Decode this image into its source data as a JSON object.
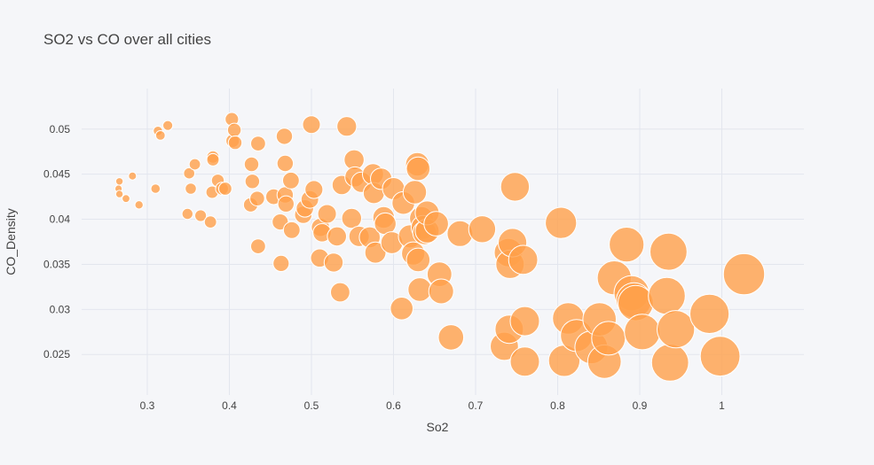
{
  "chart_data": {
    "type": "scatter",
    "title": "SO2 vs CO over all cities",
    "xlabel": "So2",
    "ylabel": "CO_Density",
    "xlim": [
      0.22,
      1.1
    ],
    "ylim": [
      0.0205,
      0.0545
    ],
    "xticks": [
      0.3,
      0.4,
      0.5,
      0.6,
      0.7,
      0.8,
      0.9,
      1
    ],
    "xtick_labels": [
      "0.3",
      "0.4",
      "0.5",
      "0.6",
      "0.7",
      "0.8",
      "0.9",
      "1"
    ],
    "yticks": [
      0.025,
      0.03,
      0.035,
      0.04,
      0.045,
      0.05
    ],
    "ytick_labels": [
      "0.025",
      "0.03",
      "0.035",
      "0.04",
      "0.045",
      "0.05"
    ],
    "grid": true,
    "legend": "none",
    "marker_color": "#ffa04a",
    "marker_opacity": 0.8,
    "marker_size_encodes": "So2",
    "series": [
      {
        "points": [
          [
            0.266,
            0.0442
          ],
          [
            0.265,
            0.0434
          ],
          [
            0.266,
            0.0428
          ],
          [
            0.274,
            0.0423
          ],
          [
            0.282,
            0.0448
          ],
          [
            0.29,
            0.0416
          ],
          [
            0.31,
            0.0434
          ],
          [
            0.313,
            0.0498
          ],
          [
            0.316,
            0.0493
          ],
          [
            0.325,
            0.0504
          ],
          [
            0.349,
            0.0406
          ],
          [
            0.351,
            0.0451
          ],
          [
            0.353,
            0.0434
          ],
          [
            0.358,
            0.0461
          ],
          [
            0.365,
            0.0404
          ],
          [
            0.377,
            0.0397
          ],
          [
            0.38,
            0.0469
          ],
          [
            0.379,
            0.043
          ],
          [
            0.38,
            0.0466
          ],
          [
            0.386,
            0.0443
          ],
          [
            0.391,
            0.0434
          ],
          [
            0.395,
            0.0434
          ],
          [
            0.403,
            0.0511
          ],
          [
            0.404,
            0.0487
          ],
          [
            0.406,
            0.0499
          ],
          [
            0.407,
            0.0485
          ],
          [
            0.426,
            0.0416
          ],
          [
            0.427,
            0.0461
          ],
          [
            0.428,
            0.0442
          ],
          [
            0.434,
            0.0423
          ],
          [
            0.435,
            0.0484
          ],
          [
            0.435,
            0.037
          ],
          [
            0.454,
            0.0425
          ],
          [
            0.462,
            0.0397
          ],
          [
            0.463,
            0.0351
          ],
          [
            0.467,
            0.0492
          ],
          [
            0.468,
            0.0462
          ],
          [
            0.468,
            0.0427
          ],
          [
            0.469,
            0.0417
          ],
          [
            0.475,
            0.0443
          ],
          [
            0.476,
            0.0388
          ],
          [
            0.49,
            0.0405
          ],
          [
            0.492,
            0.0412
          ],
          [
            0.498,
            0.0422
          ],
          [
            0.5,
            0.0505
          ],
          [
            0.503,
            0.0433
          ],
          [
            0.51,
            0.0357
          ],
          [
            0.511,
            0.0391
          ],
          [
            0.513,
            0.0385
          ],
          [
            0.519,
            0.0406
          ],
          [
            0.527,
            0.0352
          ],
          [
            0.531,
            0.0381
          ],
          [
            0.535,
            0.0319
          ],
          [
            0.537,
            0.0438
          ],
          [
            0.543,
            0.0503
          ],
          [
            0.549,
            0.0401
          ],
          [
            0.552,
            0.0466
          ],
          [
            0.553,
            0.0447
          ],
          [
            0.558,
            0.0381
          ],
          [
            0.561,
            0.0441
          ],
          [
            0.571,
            0.038
          ],
          [
            0.575,
            0.045
          ],
          [
            0.576,
            0.0429
          ],
          [
            0.578,
            0.0363
          ],
          [
            0.585,
            0.0445
          ],
          [
            0.588,
            0.0402
          ],
          [
            0.59,
            0.0395
          ],
          [
            0.598,
            0.0374
          ],
          [
            0.6,
            0.0434
          ],
          [
            0.61,
            0.0301
          ],
          [
            0.612,
            0.0418
          ],
          [
            0.62,
            0.0381
          ],
          [
            0.624,
            0.0362
          ],
          [
            0.626,
            0.043
          ],
          [
            0.629,
            0.0461
          ],
          [
            0.63,
            0.0456
          ],
          [
            0.63,
            0.0355
          ],
          [
            0.632,
            0.0322
          ],
          [
            0.634,
            0.0401
          ],
          [
            0.636,
            0.0391
          ],
          [
            0.638,
            0.0385
          ],
          [
            0.641,
            0.0387
          ],
          [
            0.641,
            0.0407
          ],
          [
            0.652,
            0.0395
          ],
          [
            0.656,
            0.0339
          ],
          [
            0.658,
            0.032
          ],
          [
            0.67,
            0.0269
          ],
          [
            0.681,
            0.0384
          ],
          [
            0.708,
            0.0389
          ],
          [
            0.735,
            0.0259
          ],
          [
            0.74,
            0.0363
          ],
          [
            0.741,
            0.0278
          ],
          [
            0.742,
            0.035
          ],
          [
            0.745,
            0.0374
          ],
          [
            0.748,
            0.0436
          ],
          [
            0.758,
            0.0355
          ],
          [
            0.76,
            0.0287
          ],
          [
            0.76,
            0.0242
          ],
          [
            0.804,
            0.0396
          ],
          [
            0.808,
            0.0243
          ],
          [
            0.813,
            0.029
          ],
          [
            0.823,
            0.0271
          ],
          [
            0.841,
            0.0258
          ],
          [
            0.851,
            0.0289
          ],
          [
            0.857,
            0.0242
          ],
          [
            0.862,
            0.0268
          ],
          [
            0.869,
            0.0335
          ],
          [
            0.884,
            0.0372
          ],
          [
            0.89,
            0.0318
          ],
          [
            0.893,
            0.031
          ],
          [
            0.895,
            0.0307
          ],
          [
            0.903,
            0.0275
          ],
          [
            0.933,
            0.0315
          ],
          [
            0.935,
            0.0364
          ],
          [
            0.937,
            0.0241
          ],
          [
            0.944,
            0.0278
          ],
          [
            0.985,
            0.0295
          ],
          [
            0.998,
            0.0248
          ],
          [
            1.027,
            0.0339
          ]
        ]
      }
    ]
  }
}
